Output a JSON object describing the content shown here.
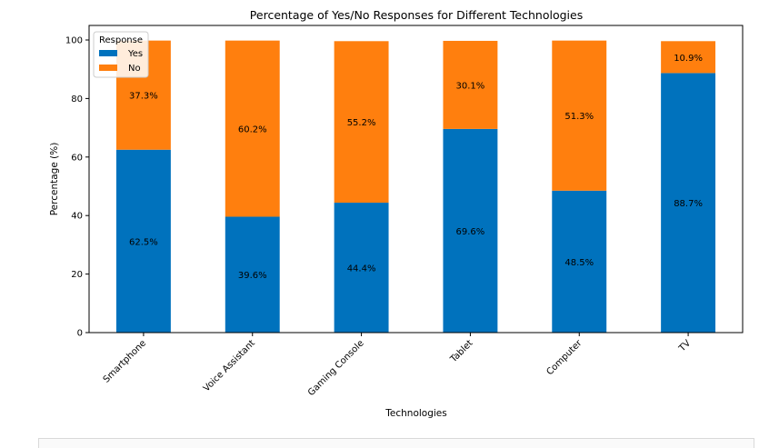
{
  "chart_data": {
    "type": "bar",
    "stacked": true,
    "title": "Percentage of Yes/No Responses for Different Technologies",
    "xlabel": "Technologies",
    "ylabel": "Percentage (%)",
    "ylim": [
      0,
      100
    ],
    "yticks": [
      0,
      20,
      40,
      60,
      80,
      100
    ],
    "grid": false,
    "legend": {
      "title": "Response",
      "placement": "top-left"
    },
    "categories": [
      "Smartphone",
      "Voice Assistant",
      "Gaming Console",
      "Tablet",
      "Computer",
      "TV"
    ],
    "series": [
      {
        "name": "Yes",
        "color": "#0072BD",
        "values": [
          62.5,
          39.6,
          44.4,
          69.6,
          48.5,
          88.7
        ],
        "labels": [
          "62.5%",
          "39.6%",
          "44.4%",
          "69.6%",
          "48.5%",
          "88.7%"
        ]
      },
      {
        "name": "No",
        "color": "#FF7F0E",
        "values": [
          37.3,
          60.2,
          55.2,
          30.1,
          51.3,
          10.9
        ],
        "labels": [
          "37.3%",
          "60.2%",
          "55.2%",
          "30.1%",
          "51.3%",
          "10.9%"
        ]
      }
    ]
  }
}
